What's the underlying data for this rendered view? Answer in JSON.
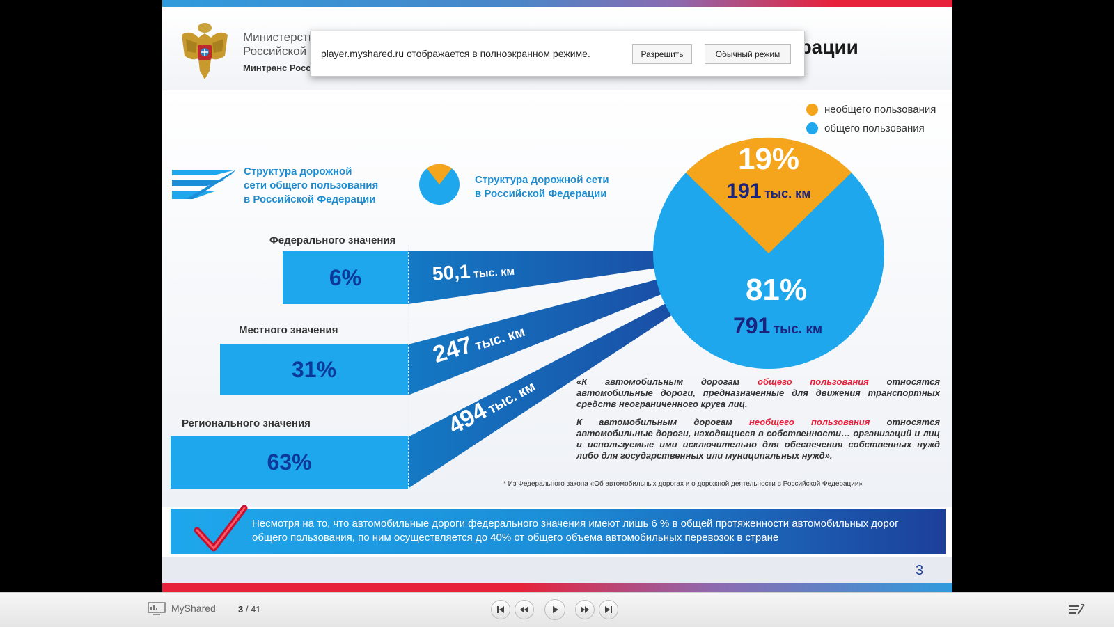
{
  "popup": {
    "message": "player.myshared.ru отображается в полноэкранном режиме.",
    "allow_label": "Разрешить",
    "normal_label": "Обычный режим"
  },
  "slide": {
    "ministry_line1": "Министерство транспорта",
    "ministry_line2": "Российской Федерации",
    "ministry_short": "Минтранс России",
    "title_fragment": "ерации",
    "legend": [
      {
        "label": "необщего пользования",
        "color": "#f5a51c"
      },
      {
        "label": "общего пользования",
        "color": "#1ea7ec"
      }
    ],
    "heading_left": [
      "Структура дорожной",
      "сети общего пользования",
      "в Российской Федерации"
    ],
    "heading_right": [
      "Структура дорожной сети",
      "в Российской Федерации"
    ],
    "rows": [
      {
        "label": "Федерального значения",
        "percent": "6%",
        "length": "50,1",
        "unit": "тыс. км"
      },
      {
        "label": "Местного значения",
        "percent": "31%",
        "length": "247",
        "unit": "тыс. км"
      },
      {
        "label": "Регионального значения",
        "percent": "63%",
        "length": "494",
        "unit": "тыс. км"
      }
    ],
    "pie": {
      "nonpublic_percent": "19%",
      "nonpublic_length": "191",
      "public_percent": "81%",
      "public_length": "791",
      "unit": "тыс. км",
      "nonpublic_color": "#f5a51c",
      "public_color": "#1ea7ec"
    },
    "note1_pre": "«К автомобильным дорогам ",
    "note1_hl": "общего пользования",
    "note1_post": " относятся автомобильные дороги, предназначенные для движения транспортных средств неограниченного круга лиц.",
    "note2_pre": "К автомобильным дорогам ",
    "note2_hl": "необщего пользования",
    "note2_post": " относятся автомобильные дороги, находящиеся в собственности… организаций и лиц и используемые ими исключительно для обеспечения собственных нужд либо для государственных или муниципальных нужд».",
    "footnote": "* Из Федерального закона «Об автомобильных дорогах и о дорожной деятельности в Российской Федерации»",
    "banner_text": "Несмотря на то, что автомобильные дороги федерального значения имеют лишь 6 % в общей протяженности автомобильных дорог общего пользования, по ним осуществляется до 40% от общего объема автомобильных перевозок в стране",
    "page_number": "3"
  },
  "player": {
    "brand": "MyShared",
    "current_page": "3",
    "total_pages": "41"
  }
}
